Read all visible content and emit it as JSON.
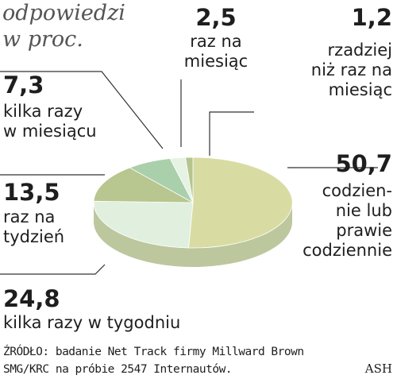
{
  "chart_data": {
    "type": "pie",
    "title": "odpowiedzi\nw proc.",
    "categories": [
      "codzien-\nnie lub\nprawie\ncodziennie",
      "kilka razy w tygodniu",
      "raz na\ntydzień",
      "kilka razy\nw miesiącu",
      "raz na\nmiesiąc",
      "rzadziej\nniż raz na\nmiesiąc"
    ],
    "values": [
      50.7,
      24.8,
      13.5,
      7.3,
      2.5,
      1.2
    ],
    "value_labels": [
      "50,7",
      "24,8",
      "13,5",
      "7,3",
      "2,5",
      "1,2"
    ],
    "colors": [
      "#d9dca2",
      "#e1efdf",
      "#b8c68f",
      "#a9d0aa",
      "#e6f2e3",
      "#b5c58d"
    ],
    "source": "ŹRÓDŁO: badanie Net Track firmy Millward Brown\nSMG/KRC na próbie 2547 Internautów.",
    "credit": "ASH"
  }
}
